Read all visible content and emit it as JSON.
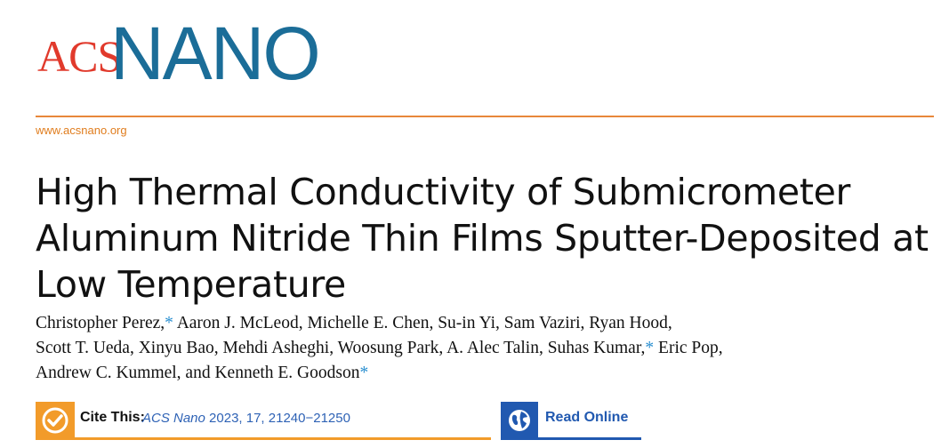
{
  "header": {
    "logo_acs": "ACS",
    "logo_nano": "NANO",
    "url": "www.acsnano.org"
  },
  "article": {
    "title": "High Thermal Conductivity of Submicrometer Aluminum Nitride Thin Films Sputter-Deposited at Low Temperature",
    "authors_line1_a": "Christopher Perez,",
    "authors_line1_b": " Aaron J. McLeod, Michelle E. Chen, Su-in Yi, Sam Vaziri, Ryan Hood,",
    "authors_line2_a": "Scott T. Ueda, Xinyu Bao, Mehdi Asheghi, Woosung Park, A. Alec Talin, Suhas Kumar,",
    "authors_line2_b": " Eric Pop,",
    "authors_line3_a": "Andrew C. Kummel, and Kenneth E. Goodson",
    "asterisk": "*"
  },
  "actions": {
    "cite_label": "Cite This:",
    "cite_journal": "ACS Nano",
    "cite_details": " 2023, 17, 21240−21250",
    "read_label": "Read Online"
  },
  "colors": {
    "acs_red": "#e13a2c",
    "nano_blue": "#1b6d98",
    "orange": "#f29b2a",
    "read_blue": "#2159b0"
  },
  "icons": {
    "cite": "check-circle-icon",
    "read": "globe-icon"
  }
}
